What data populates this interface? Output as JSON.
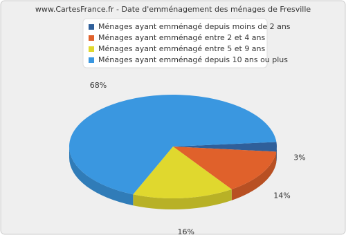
{
  "chart_data": {
    "type": "pie",
    "title": "www.CartesFrance.fr - Date d'emménagement des ménages de Fresville",
    "categories": [
      "Ménages ayant emménagé depuis moins de 2 ans",
      "Ménages ayant emménagé entre 2 et 4 ans",
      "Ménages ayant emménagé entre 5 et 9 ans",
      "Ménages ayant emménagé depuis 10 ans ou plus"
    ],
    "values": [
      3,
      14,
      16,
      68
    ],
    "value_labels": [
      "3%",
      "14%",
      "16%",
      "68%"
    ],
    "colors": [
      "#2f5f9a",
      "#e0612b",
      "#e0d82e",
      "#3a97e0"
    ]
  }
}
